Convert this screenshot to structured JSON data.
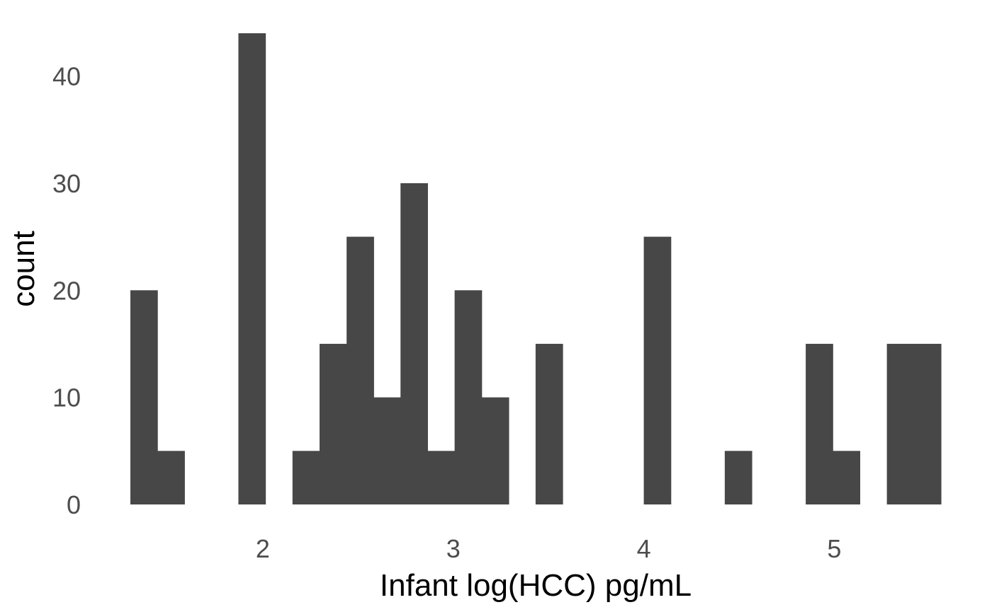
{
  "chart_data": {
    "type": "bar",
    "title": "",
    "xlabel": "Infant log(HCC) pg/mL",
    "ylabel": "count",
    "bin_width": 0.1418,
    "bins": [
      {
        "x_start": 1.305,
        "count": 20
      },
      {
        "x_start": 1.447,
        "count": 5
      },
      {
        "x_start": 1.589,
        "count": 0
      },
      {
        "x_start": 1.73,
        "count": 0
      },
      {
        "x_start": 1.872,
        "count": 44
      },
      {
        "x_start": 2.014,
        "count": 0
      },
      {
        "x_start": 2.156,
        "count": 5
      },
      {
        "x_start": 2.298,
        "count": 15
      },
      {
        "x_start": 2.44,
        "count": 25
      },
      {
        "x_start": 2.581,
        "count": 10
      },
      {
        "x_start": 2.723,
        "count": 30
      },
      {
        "x_start": 2.865,
        "count": 5
      },
      {
        "x_start": 3.007,
        "count": 20
      },
      {
        "x_start": 3.149,
        "count": 10
      },
      {
        "x_start": 3.29,
        "count": 0
      },
      {
        "x_start": 3.432,
        "count": 15
      },
      {
        "x_start": 3.574,
        "count": 0
      },
      {
        "x_start": 3.716,
        "count": 0
      },
      {
        "x_start": 3.858,
        "count": 0
      },
      {
        "x_start": 4.0,
        "count": 25
      },
      {
        "x_start": 4.141,
        "count": 0
      },
      {
        "x_start": 4.283,
        "count": 0
      },
      {
        "x_start": 4.425,
        "count": 5
      },
      {
        "x_start": 4.567,
        "count": 0
      },
      {
        "x_start": 4.709,
        "count": 0
      },
      {
        "x_start": 4.85,
        "count": 15
      },
      {
        "x_start": 4.992,
        "count": 5
      },
      {
        "x_start": 5.134,
        "count": 0
      },
      {
        "x_start": 5.276,
        "count": 15
      },
      {
        "x_start": 5.418,
        "count": 15
      }
    ],
    "xlim": [
      1.305,
      5.56
    ],
    "ylim": [
      0,
      44
    ],
    "x_ticks": [
      2,
      3,
      4,
      5
    ],
    "x_tick_labels": [
      "2",
      "3",
      "4",
      "5"
    ],
    "y_ticks": [
      0,
      10,
      20,
      30,
      40
    ],
    "y_tick_labels": [
      "0",
      "10",
      "20",
      "30",
      "40"
    ],
    "grid": false,
    "legend": "none",
    "bar_color": "#474747"
  }
}
